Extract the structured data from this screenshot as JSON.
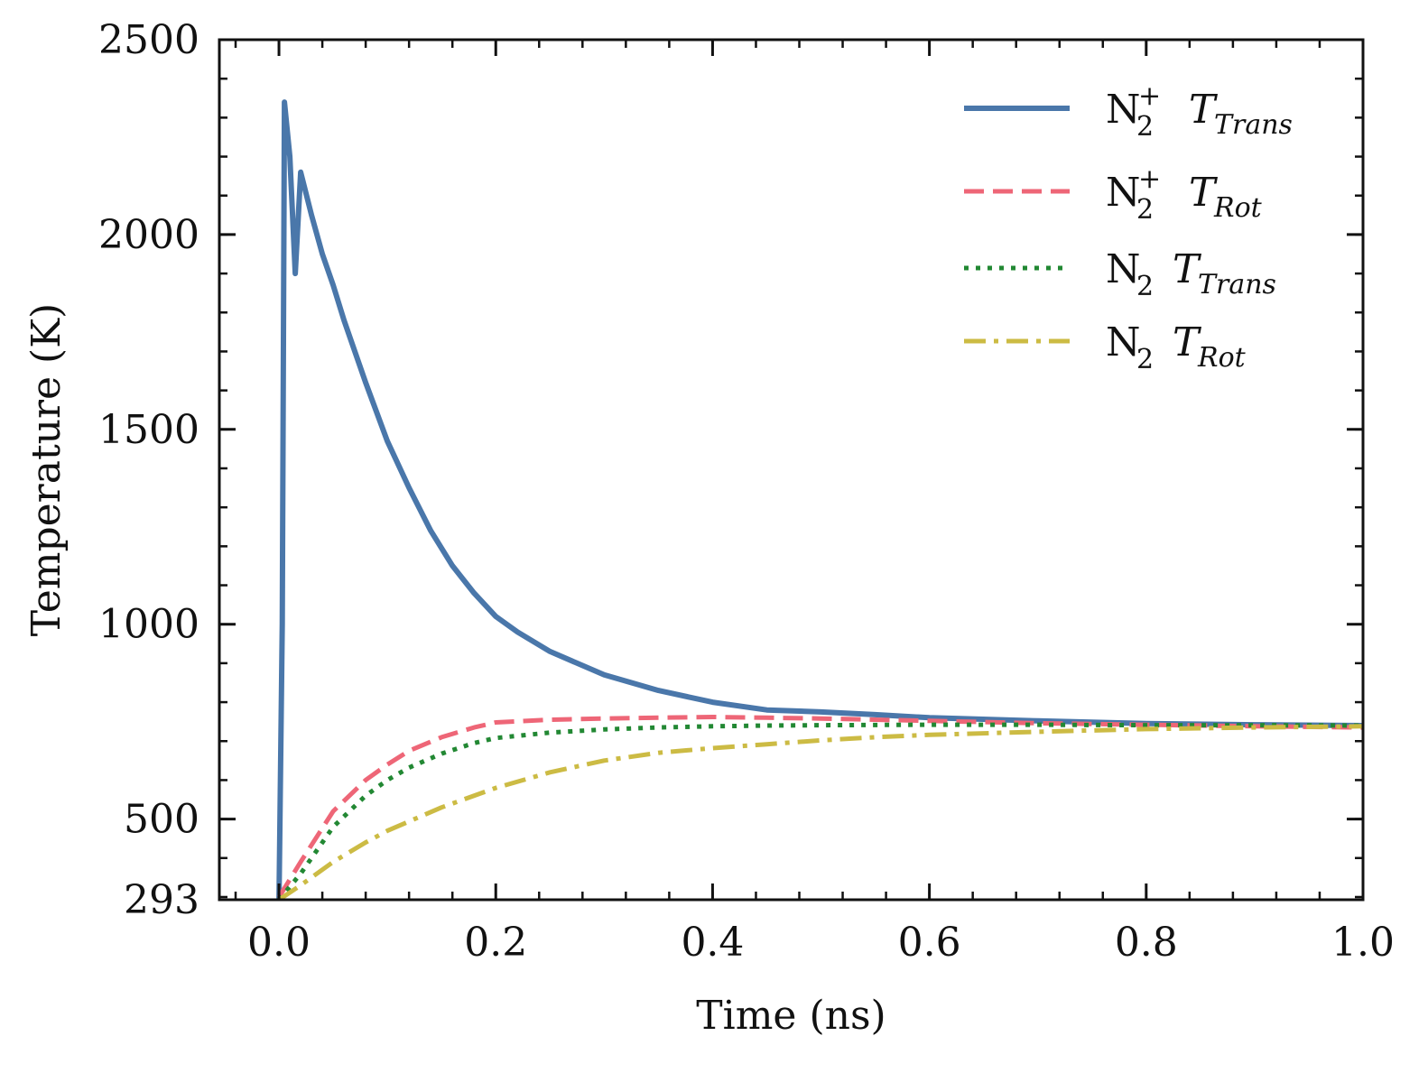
{
  "chart_data": {
    "type": "line",
    "title": "",
    "xlabel": "Time (ns)",
    "ylabel": "Temperature (K)",
    "xlim": [
      -0.055,
      1.0
    ],
    "ylim": [
      293,
      2500
    ],
    "xticks": [
      0.0,
      0.2,
      0.4,
      0.6,
      0.8,
      1.0
    ],
    "xtick_labels": [
      "0.0",
      "0.2",
      "0.4",
      "0.6",
      "0.8",
      "1.0"
    ],
    "yticks": [
      293,
      500,
      1000,
      1500,
      2000,
      2500
    ],
    "ytick_labels": [
      "293",
      "500",
      "1000",
      "1500",
      "2000",
      "2500"
    ],
    "grid": false,
    "legend_position": "top-right",
    "series": [
      {
        "name": "N2+ T_Trans",
        "legend": {
          "base": "N",
          "sub": "2",
          "sup": "+",
          "var": "T",
          "var_sub": "Trans"
        },
        "color": "#4a77aa",
        "style": "solid",
        "x": [
          0.0,
          0.003,
          0.005,
          0.01,
          0.015,
          0.02,
          0.03,
          0.04,
          0.05,
          0.06,
          0.08,
          0.1,
          0.12,
          0.14,
          0.16,
          0.18,
          0.2,
          0.22,
          0.25,
          0.3,
          0.35,
          0.4,
          0.45,
          0.5,
          0.55,
          0.6,
          0.7,
          0.8,
          0.9,
          1.0
        ],
        "values": [
          293,
          1000,
          2340,
          2200,
          1900,
          2160,
          2050,
          1950,
          1870,
          1780,
          1620,
          1470,
          1350,
          1240,
          1150,
          1080,
          1020,
          980,
          930,
          870,
          830,
          800,
          780,
          775,
          768,
          760,
          752,
          745,
          742,
          740
        ]
      },
      {
        "name": "N2+ T_Rot",
        "legend": {
          "base": "N",
          "sub": "2",
          "sup": "+",
          "var": "T",
          "var_sub": "Rot"
        },
        "color": "#ee6677",
        "style": "dashed",
        "x": [
          0.0,
          0.02,
          0.05,
          0.08,
          0.1,
          0.12,
          0.15,
          0.18,
          0.2,
          0.25,
          0.3,
          0.35,
          0.4,
          0.45,
          0.5,
          0.6,
          0.7,
          0.8,
          0.9,
          1.0
        ],
        "values": [
          300,
          390,
          520,
          600,
          640,
          675,
          710,
          735,
          748,
          755,
          758,
          760,
          762,
          760,
          758,
          752,
          746,
          742,
          738,
          735
        ]
      },
      {
        "name": "N2 T_Trans",
        "legend": {
          "base": "N",
          "sub": "2",
          "sup": "",
          "var": "T",
          "var_sub": "Trans"
        },
        "color": "#228833",
        "style": "dotted",
        "x": [
          0.0,
          0.02,
          0.05,
          0.08,
          0.1,
          0.12,
          0.15,
          0.18,
          0.2,
          0.25,
          0.3,
          0.35,
          0.4,
          0.45,
          0.5,
          0.6,
          0.7,
          0.8,
          0.9,
          1.0
        ],
        "values": [
          293,
          360,
          480,
          560,
          600,
          632,
          668,
          695,
          708,
          722,
          730,
          735,
          738,
          740,
          741,
          742,
          742,
          741,
          741,
          740
        ]
      },
      {
        "name": "N2 T_Rot",
        "legend": {
          "base": "N",
          "sub": "2",
          "sup": "",
          "var": "T",
          "var_sub": "Rot"
        },
        "color": "#ccbb44",
        "style": "dashdot",
        "x": [
          0.0,
          0.02,
          0.05,
          0.08,
          0.1,
          0.15,
          0.2,
          0.25,
          0.3,
          0.35,
          0.4,
          0.45,
          0.5,
          0.55,
          0.6,
          0.7,
          0.8,
          0.9,
          1.0
        ],
        "values": [
          293,
          330,
          390,
          440,
          470,
          530,
          580,
          620,
          650,
          670,
          682,
          692,
          702,
          710,
          716,
          724,
          731,
          735,
          738
        ]
      }
    ]
  }
}
